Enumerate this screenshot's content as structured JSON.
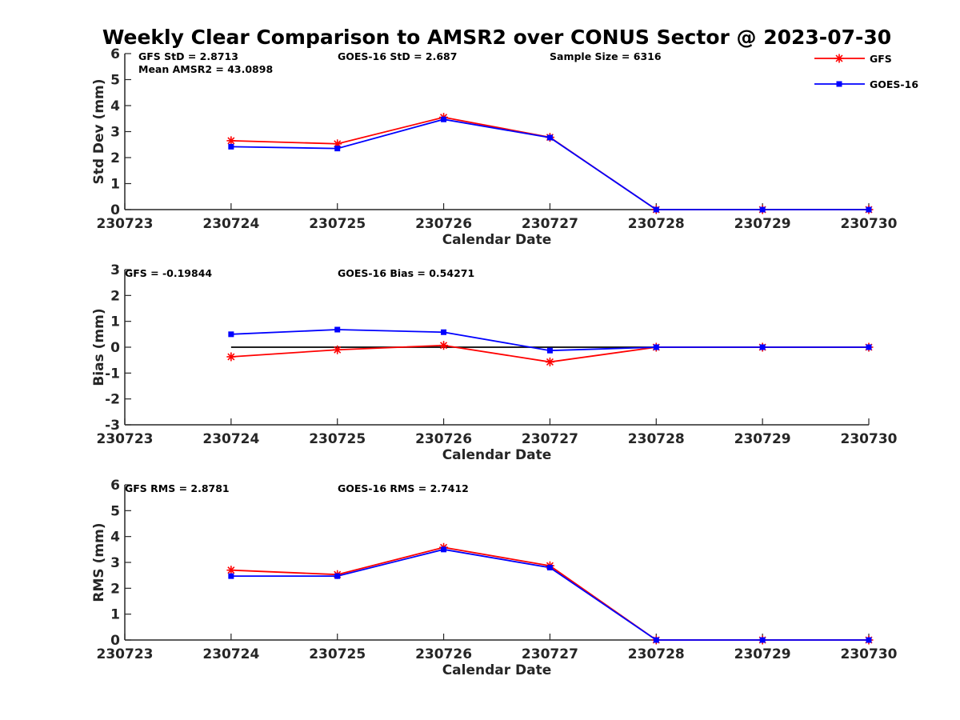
{
  "title": "Weekly Clear Comparison to AMSR2 over CONUS Sector @ 2023-07-30",
  "legend": {
    "placement": "top-right",
    "entries": [
      {
        "name": "GFS",
        "color": "#ff0000",
        "marker": "asterisk"
      },
      {
        "name": "GOES-16",
        "color": "#0000ff",
        "marker": "square"
      }
    ]
  },
  "chart_data": [
    {
      "type": "line",
      "x": [
        "230723",
        "230724",
        "230725",
        "230726",
        "230727",
        "230728",
        "230729",
        "230730"
      ],
      "xlabel": "Calendar Date",
      "ylabel": "Std Dev (mm)",
      "ylim": [
        0,
        6
      ],
      "yticks": [
        "0",
        "1",
        "2",
        "3",
        "4",
        "5",
        "6"
      ],
      "annotations": [
        "GFS StD = 2.8713",
        "Mean AMSR2 = 43.0898",
        "GOES-16 StD = 2.687",
        "Sample Size = 6316"
      ],
      "series": [
        {
          "name": "GFS",
          "values": [
            null,
            2.65,
            2.53,
            3.55,
            2.78,
            0,
            0,
            0
          ]
        },
        {
          "name": "GOES-16",
          "values": [
            null,
            2.42,
            2.35,
            3.47,
            2.77,
            0,
            0,
            0
          ]
        }
      ]
    },
    {
      "type": "line",
      "x": [
        "230723",
        "230724",
        "230725",
        "230726",
        "230727",
        "230728",
        "230729",
        "230730"
      ],
      "xlabel": "Calendar Date",
      "ylabel": "Bias (mm)",
      "ylim": [
        -3,
        3
      ],
      "yticks": [
        "-3",
        "-2",
        "-1",
        "0",
        "1",
        "2",
        "3"
      ],
      "reference_line": 0,
      "annotations": [
        "GFS = -0.19844",
        "GOES-16 Bias  = 0.54271"
      ],
      "series": [
        {
          "name": "GFS",
          "values": [
            null,
            -0.37,
            -0.1,
            0.07,
            -0.57,
            0,
            0,
            0
          ]
        },
        {
          "name": "GOES-16",
          "values": [
            null,
            0.5,
            0.68,
            0.58,
            -0.13,
            0,
            0,
            0
          ]
        }
      ]
    },
    {
      "type": "line",
      "x": [
        "230723",
        "230724",
        "230725",
        "230726",
        "230727",
        "230728",
        "230729",
        "230730"
      ],
      "xlabel": "Calendar Date",
      "ylabel": "RMS (mm)",
      "ylim": [
        0,
        6
      ],
      "yticks": [
        "0",
        "1",
        "2",
        "3",
        "4",
        "5",
        "6"
      ],
      "annotations": [
        "GFS RMS = 2.8781",
        "GOES-16 RMS = 2.7412"
      ],
      "series": [
        {
          "name": "GFS",
          "values": [
            null,
            2.7,
            2.53,
            3.58,
            2.87,
            0,
            0,
            0
          ]
        },
        {
          "name": "GOES-16",
          "values": [
            null,
            2.47,
            2.47,
            3.5,
            2.8,
            0,
            0,
            0
          ]
        }
      ]
    }
  ]
}
